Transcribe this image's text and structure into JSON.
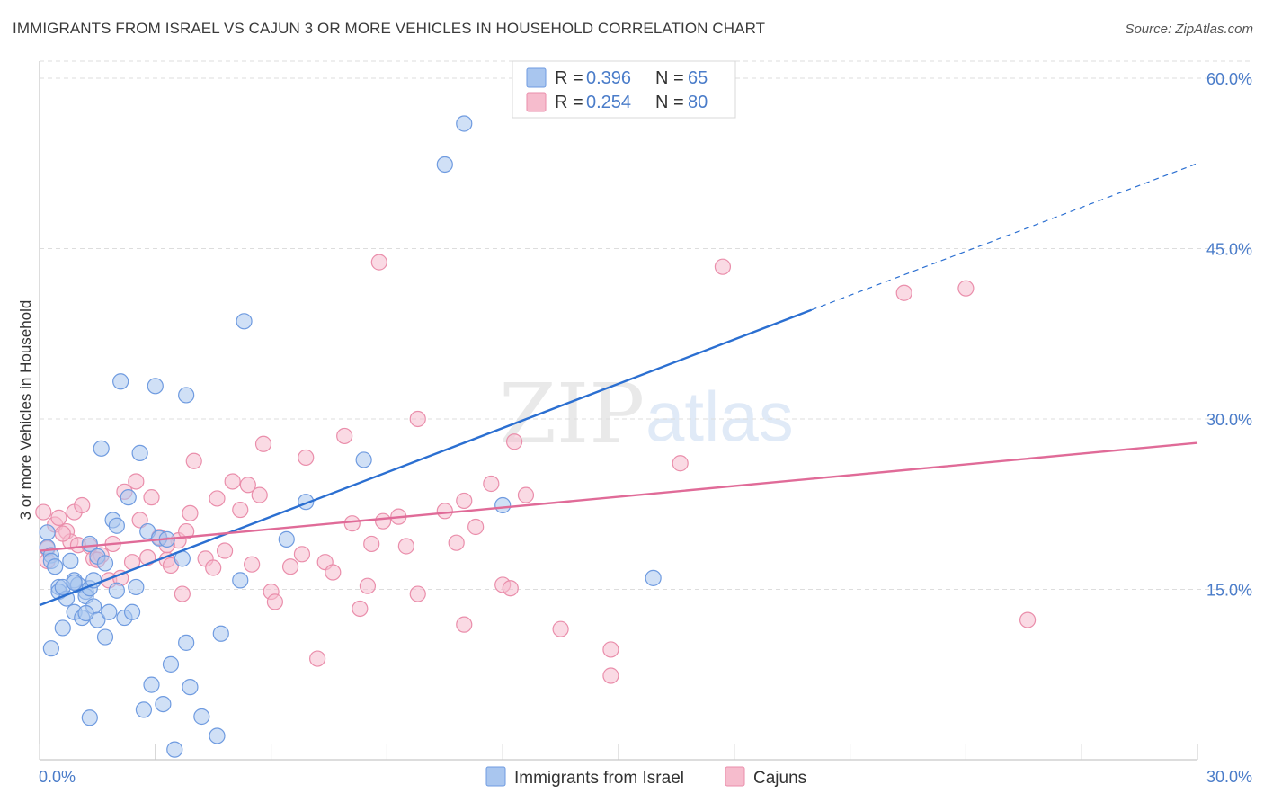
{
  "title": "IMMIGRANTS FROM ISRAEL VS CAJUN 3 OR MORE VEHICLES IN HOUSEHOLD CORRELATION CHART",
  "source": "Source: ZipAtlas.com",
  "watermark": {
    "zip": "ZIP",
    "atlas": "atlas"
  },
  "colors": {
    "blue_fill": "#a9c6ef",
    "blue_stroke": "#6f9be0",
    "blue_line": "#2b6fd1",
    "pink_fill": "#f6bccd",
    "pink_stroke": "#ea8eab",
    "pink_line": "#e06b98",
    "tick_text": "#4a7cc9",
    "grid": "#dddddd"
  },
  "legend": {
    "rows": [
      {
        "r_label": "R =",
        "r_value": "0.396",
        "n_label": "N =",
        "n_value": "65",
        "series": "blue"
      },
      {
        "r_label": "R =",
        "r_value": "0.254",
        "n_label": "N =",
        "n_value": "80",
        "series": "pink"
      }
    ]
  },
  "bottom_legend": {
    "items": [
      {
        "label": "Immigrants from Israel",
        "series": "blue"
      },
      {
        "label": "Cajuns",
        "series": "pink"
      }
    ]
  },
  "chart_data": {
    "type": "scatter",
    "title": "IMMIGRANTS FROM ISRAEL VS CAJUN 3 OR MORE VEHICLES IN HOUSEHOLD CORRELATION CHART",
    "xlabel": "",
    "ylabel": "3 or more Vehicles in Household",
    "xlim": [
      0,
      30
    ],
    "ylim": [
      0,
      61.5
    ],
    "x_tick_labels": [
      "0.0%",
      "30.0%"
    ],
    "y_ticks": [
      15,
      30,
      45,
      60
    ],
    "y_tick_labels": [
      "15.0%",
      "30.0%",
      "45.0%",
      "60.0%"
    ],
    "grid": true,
    "legend_position": "top-center",
    "series": [
      {
        "name": "Immigrants from Israel",
        "color": "#a9c6ef",
        "trend": {
          "x": [
            0,
            20
          ],
          "y": [
            13.6,
            39.6
          ],
          "dashed_to": [
            30,
            52.5
          ]
        },
        "points": [
          [
            0.2,
            20.0
          ],
          [
            0.2,
            18.7
          ],
          [
            0.3,
            18.0
          ],
          [
            0.3,
            17.5
          ],
          [
            0.4,
            17.0
          ],
          [
            0.5,
            15.2
          ],
          [
            0.5,
            14.8
          ],
          [
            0.6,
            11.6
          ],
          [
            0.7,
            14.2
          ],
          [
            0.8,
            17.5
          ],
          [
            0.9,
            15.8
          ],
          [
            0.9,
            13.0
          ],
          [
            1.0,
            15.4
          ],
          [
            1.1,
            12.5
          ],
          [
            1.2,
            14.8
          ],
          [
            1.2,
            14.4
          ],
          [
            1.3,
            15.1
          ],
          [
            1.3,
            19.0
          ],
          [
            1.4,
            15.8
          ],
          [
            1.4,
            13.5
          ],
          [
            1.5,
            12.3
          ],
          [
            1.5,
            17.9
          ],
          [
            1.6,
            27.4
          ],
          [
            1.7,
            17.3
          ],
          [
            1.8,
            13.0
          ],
          [
            1.9,
            21.1
          ],
          [
            2.0,
            20.6
          ],
          [
            2.1,
            33.3
          ],
          [
            2.2,
            12.5
          ],
          [
            2.3,
            23.1
          ],
          [
            2.4,
            13.0
          ],
          [
            2.5,
            15.2
          ],
          [
            2.6,
            27.0
          ],
          [
            2.7,
            4.4
          ],
          [
            2.8,
            20.1
          ],
          [
            2.9,
            6.6
          ],
          [
            3.0,
            32.9
          ],
          [
            3.1,
            19.5
          ],
          [
            3.2,
            4.9
          ],
          [
            3.3,
            19.4
          ],
          [
            3.4,
            8.4
          ],
          [
            3.5,
            0.9
          ],
          [
            3.7,
            17.7
          ],
          [
            3.8,
            32.1
          ],
          [
            3.8,
            10.3
          ],
          [
            3.9,
            6.4
          ],
          [
            4.2,
            3.8
          ],
          [
            4.6,
            2.1
          ],
          [
            4.7,
            11.1
          ],
          [
            5.2,
            15.8
          ],
          [
            5.3,
            38.6
          ],
          [
            6.4,
            19.4
          ],
          [
            6.9,
            22.7
          ],
          [
            8.4,
            26.4
          ],
          [
            10.5,
            52.4
          ],
          [
            11.0,
            56.0
          ],
          [
            12.0,
            22.4
          ],
          [
            15.9,
            16.0
          ],
          [
            0.3,
            9.8
          ],
          [
            1.3,
            3.7
          ],
          [
            1.7,
            10.8
          ],
          [
            0.6,
            15.2
          ],
          [
            0.9,
            15.6
          ],
          [
            1.2,
            12.9
          ],
          [
            2.0,
            14.9
          ]
        ]
      },
      {
        "name": "Cajuns",
        "color": "#f6bccd",
        "trend": {
          "x": [
            0,
            30
          ],
          "y": [
            18.4,
            27.9
          ]
        },
        "points": [
          [
            0.1,
            21.8
          ],
          [
            0.2,
            18.6
          ],
          [
            0.2,
            17.5
          ],
          [
            0.4,
            20.7
          ],
          [
            0.5,
            21.3
          ],
          [
            0.7,
            20.1
          ],
          [
            0.8,
            19.2
          ],
          [
            0.9,
            21.8
          ],
          [
            1.0,
            18.9
          ],
          [
            1.1,
            22.4
          ],
          [
            1.3,
            18.8
          ],
          [
            1.4,
            17.7
          ],
          [
            1.6,
            18.0
          ],
          [
            1.8,
            15.8
          ],
          [
            1.9,
            19.0
          ],
          [
            2.1,
            16.0
          ],
          [
            2.2,
            23.6
          ],
          [
            2.4,
            17.4
          ],
          [
            2.5,
            24.5
          ],
          [
            2.6,
            21.1
          ],
          [
            2.8,
            17.8
          ],
          [
            2.9,
            23.1
          ],
          [
            3.1,
            19.6
          ],
          [
            3.3,
            17.6
          ],
          [
            3.4,
            17.1
          ],
          [
            3.6,
            19.3
          ],
          [
            3.7,
            14.6
          ],
          [
            3.8,
            20.1
          ],
          [
            3.9,
            21.7
          ],
          [
            4.0,
            26.3
          ],
          [
            4.3,
            17.7
          ],
          [
            4.5,
            16.9
          ],
          [
            4.6,
            23.0
          ],
          [
            4.8,
            18.4
          ],
          [
            5.0,
            24.5
          ],
          [
            5.2,
            22.0
          ],
          [
            5.4,
            24.2
          ],
          [
            5.5,
            17.2
          ],
          [
            5.7,
            23.3
          ],
          [
            5.8,
            27.8
          ],
          [
            6.0,
            14.8
          ],
          [
            6.1,
            13.9
          ],
          [
            6.5,
            17.0
          ],
          [
            6.8,
            18.1
          ],
          [
            6.9,
            26.6
          ],
          [
            7.2,
            8.9
          ],
          [
            7.4,
            17.4
          ],
          [
            7.6,
            16.5
          ],
          [
            7.9,
            28.5
          ],
          [
            8.1,
            20.8
          ],
          [
            8.3,
            13.3
          ],
          [
            8.5,
            15.3
          ],
          [
            8.6,
            19.0
          ],
          [
            8.8,
            43.8
          ],
          [
            8.9,
            21.0
          ],
          [
            9.3,
            21.4
          ],
          [
            9.5,
            18.8
          ],
          [
            9.8,
            30.0
          ],
          [
            9.8,
            14.6
          ],
          [
            10.5,
            21.9
          ],
          [
            10.8,
            19.1
          ],
          [
            11.0,
            11.9
          ],
          [
            11.0,
            22.8
          ],
          [
            11.3,
            20.5
          ],
          [
            11.7,
            24.3
          ],
          [
            12.0,
            15.4
          ],
          [
            12.2,
            15.1
          ],
          [
            12.3,
            28.0
          ],
          [
            12.6,
            23.3
          ],
          [
            13.5,
            11.5
          ],
          [
            14.8,
            9.7
          ],
          [
            14.8,
            7.4
          ],
          [
            16.6,
            26.1
          ],
          [
            17.7,
            43.4
          ],
          [
            22.4,
            41.1
          ],
          [
            24.0,
            41.5
          ],
          [
            25.6,
            12.3
          ],
          [
            1.5,
            17.6
          ],
          [
            3.3,
            18.9
          ],
          [
            0.6,
            19.9
          ]
        ]
      }
    ]
  }
}
